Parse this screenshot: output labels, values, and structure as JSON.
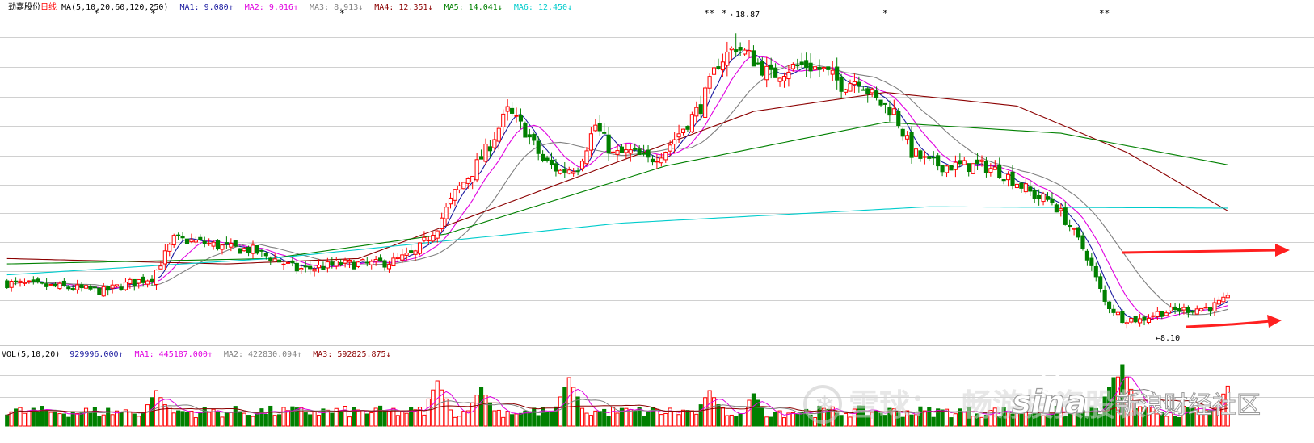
{
  "header": {
    "stock_name": "劲嘉股份",
    "period": "日线",
    "ma_params": "MA(5,10,20,60,120,250)",
    "ma_items": [
      {
        "label": "MA1: 9.080",
        "arrow": "↑",
        "color": "#1a1aa0"
      },
      {
        "label": "MA2: 9.016",
        "arrow": "↑",
        "color": "#e000e0"
      },
      {
        "label": "MA3: 8.913",
        "arrow": "↓",
        "color": "#808080"
      },
      {
        "label": "MA4: 12.351",
        "arrow": "↓",
        "color": "#8b0000"
      },
      {
        "label": "MA5: 14.041",
        "arrow": "↓",
        "color": "#008000"
      },
      {
        "label": "MA6: 12.450",
        "arrow": "↓",
        "color": "#00cccc"
      }
    ]
  },
  "volume_header": {
    "params": "VOL(5,10,20)",
    "items": [
      {
        "label": "929996.000",
        "arrow": "↑",
        "color": "#1a1aa0"
      },
      {
        "label": "MA1: 445187.000",
        "arrow": "↑",
        "color": "#e000e0"
      },
      {
        "label": "MA2: 422830.094",
        "arrow": "↑",
        "color": "#808080"
      },
      {
        "label": "MA3: 592825.875",
        "arrow": "↓",
        "color": "#8b0000"
      }
    ]
  },
  "annotations": {
    "high_label": "←18.87",
    "low_label": "←8.10",
    "event_marks": [
      "*",
      "*",
      "*",
      "**",
      "*",
      "*",
      "**"
    ]
  },
  "watermark": {
    "xueqiu": "雪球：",
    "author": "畅游投资股长",
    "sina": "sina",
    "sina_cn": "新浪财经社区"
  },
  "colors": {
    "up": "#ff0000",
    "down": "#008000",
    "grid": "#d0d0d0",
    "arrow": "#ff2020"
  },
  "chart_data": {
    "type": "candlestick",
    "price_range": [
      7.5,
      19.5
    ],
    "high": 18.87,
    "low": 8.1,
    "moving_average_params": [
      5,
      10,
      20,
      60,
      120,
      250
    ],
    "last_moving_averages": {
      "MA1": 9.08,
      "MA2": 9.016,
      "MA3": 8.913,
      "MA4": 12.351,
      "MA5": 14.041,
      "MA6": 12.45
    },
    "last_volume": 929996,
    "volume_moving_averages": {
      "MA1": 445187,
      "MA2": 422830.094,
      "MA3": 592825.875
    },
    "price_path": [
      [
        0,
        9.7
      ],
      [
        8,
        9.6
      ],
      [
        16,
        9.5
      ],
      [
        22,
        9.4
      ],
      [
        28,
        9.7
      ],
      [
        33,
        9.9
      ],
      [
        38,
        11.3
      ],
      [
        44,
        11.2
      ],
      [
        50,
        11.0
      ],
      [
        56,
        10.9
      ],
      [
        62,
        10.5
      ],
      [
        66,
        10.2
      ],
      [
        72,
        10.3
      ],
      [
        76,
        10.4
      ],
      [
        80,
        10.4
      ],
      [
        84,
        10.4
      ],
      [
        88,
        10.5
      ],
      [
        93,
        10.8
      ],
      [
        98,
        11.8
      ],
      [
        102,
        13.0
      ],
      [
        106,
        13.8
      ],
      [
        110,
        14.8
      ],
      [
        114,
        16.0
      ],
      [
        118,
        15.3
      ],
      [
        122,
        14.2
      ],
      [
        126,
        13.8
      ],
      [
        130,
        14.0
      ],
      [
        134,
        15.5
      ],
      [
        138,
        14.4
      ],
      [
        142,
        14.5
      ],
      [
        146,
        14.2
      ],
      [
        150,
        14.6
      ],
      [
        154,
        15.4
      ],
      [
        158,
        16.2
      ],
      [
        162,
        17.8
      ],
      [
        166,
        18.4
      ],
      [
        170,
        17.9
      ],
      [
        174,
        17.3
      ],
      [
        178,
        17.6
      ],
      [
        182,
        17.7
      ],
      [
        186,
        17.5
      ],
      [
        190,
        17.0
      ],
      [
        194,
        17.2
      ],
      [
        198,
        16.4
      ],
      [
        202,
        16.0
      ],
      [
        206,
        14.5
      ],
      [
        210,
        14.1
      ],
      [
        214,
        14.0
      ],
      [
        218,
        14.0
      ],
      [
        222,
        14.0
      ],
      [
        226,
        13.8
      ],
      [
        230,
        13.4
      ],
      [
        234,
        12.9
      ],
      [
        238,
        12.7
      ],
      [
        242,
        11.8
      ],
      [
        246,
        10.7
      ],
      [
        250,
        9.0
      ],
      [
        254,
        8.4
      ],
      [
        258,
        8.35
      ],
      [
        262,
        8.6
      ],
      [
        266,
        8.7
      ],
      [
        270,
        8.75
      ],
      [
        274,
        8.8
      ],
      [
        278,
        9.1
      ]
    ],
    "ma250_path": [
      [
        0,
        10.0
      ],
      [
        60,
        10.6
      ],
      [
        140,
        11.9
      ],
      [
        210,
        12.5
      ],
      [
        278,
        12.45
      ]
    ],
    "ma120_path": [
      [
        0,
        10.4
      ],
      [
        60,
        10.6
      ],
      [
        100,
        11.5
      ],
      [
        150,
        14.0
      ],
      [
        200,
        15.6
      ],
      [
        240,
        15.2
      ],
      [
        278,
        14.04
      ]
    ],
    "ma60_path": [
      [
        0,
        10.6
      ],
      [
        50,
        10.4
      ],
      [
        80,
        10.6
      ],
      [
        120,
        13.0
      ],
      [
        170,
        16.0
      ],
      [
        200,
        16.7
      ],
      [
        230,
        16.2
      ],
      [
        255,
        14.5
      ],
      [
        278,
        12.35
      ]
    ],
    "volume_shape": {
      "base": 0.13,
      "spikes": [
        [
          34,
          0.55
        ],
        [
          98,
          0.7
        ],
        [
          108,
          0.6
        ],
        [
          128,
          0.75
        ],
        [
          160,
          0.55
        ],
        [
          170,
          0.5
        ],
        [
          252,
          0.75
        ],
        [
          254,
          0.95
        ],
        [
          278,
          0.62
        ]
      ]
    }
  }
}
